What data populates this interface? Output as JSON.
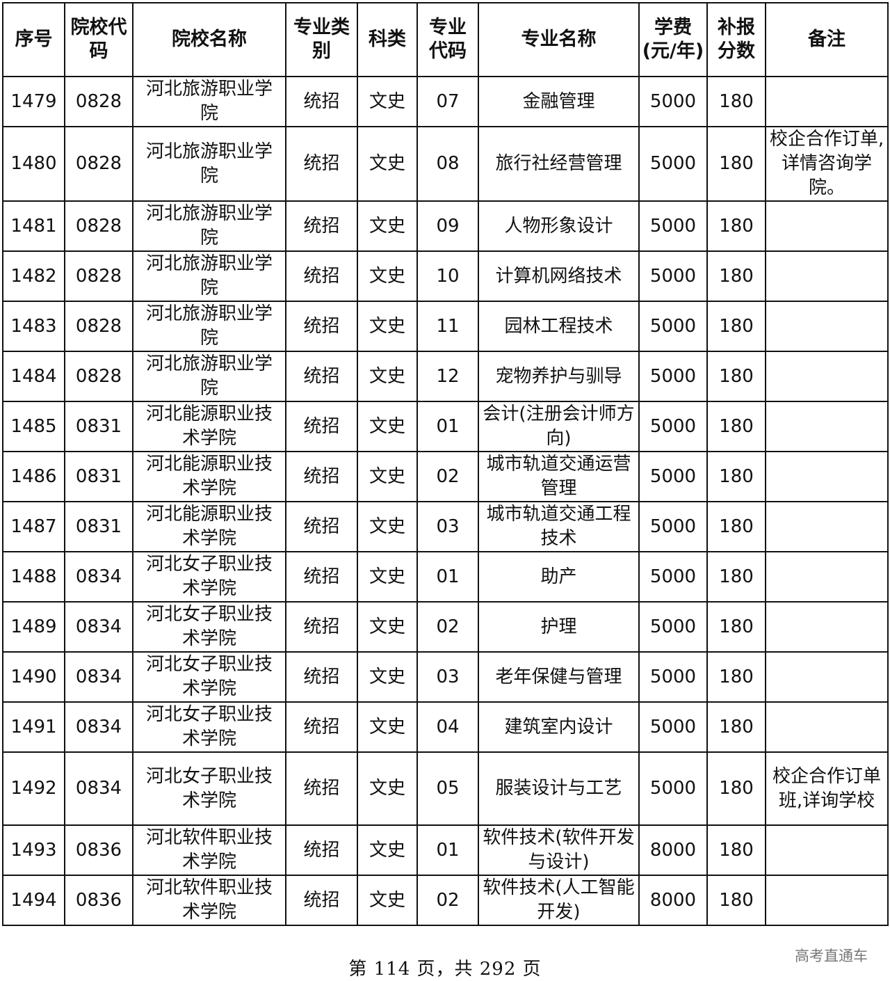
{
  "table": {
    "headers": [
      "序号",
      "院校代码",
      "院校名称",
      "专业类别",
      "科类",
      "专业代码",
      "专业名称",
      "学费(元/年)",
      "补报分数",
      "备注"
    ],
    "rows": [
      [
        "1479",
        "0828",
        "河北旅游职业学院",
        "统招",
        "文史",
        "07",
        "金融管理",
        "5000",
        "180",
        ""
      ],
      [
        "1480",
        "0828",
        "河北旅游职业学院",
        "统招",
        "文史",
        "08",
        "旅行社经营管理",
        "5000",
        "180",
        "校企合作订单,详情咨询学院。"
      ],
      [
        "1481",
        "0828",
        "河北旅游职业学院",
        "统招",
        "文史",
        "09",
        "人物形象设计",
        "5000",
        "180",
        ""
      ],
      [
        "1482",
        "0828",
        "河北旅游职业学院",
        "统招",
        "文史",
        "10",
        "计算机网络技术",
        "5000",
        "180",
        ""
      ],
      [
        "1483",
        "0828",
        "河北旅游职业学院",
        "统招",
        "文史",
        "11",
        "园林工程技术",
        "5000",
        "180",
        ""
      ],
      [
        "1484",
        "0828",
        "河北旅游职业学院",
        "统招",
        "文史",
        "12",
        "宠物养护与驯导",
        "5000",
        "180",
        ""
      ],
      [
        "1485",
        "0831",
        "河北能源职业技术学院",
        "统招",
        "文史",
        "01",
        "会计(注册会计师方向)",
        "5000",
        "180",
        ""
      ],
      [
        "1486",
        "0831",
        "河北能源职业技术学院",
        "统招",
        "文史",
        "02",
        "城市轨道交通运营管理",
        "5000",
        "180",
        ""
      ],
      [
        "1487",
        "0831",
        "河北能源职业技术学院",
        "统招",
        "文史",
        "03",
        "城市轨道交通工程技术",
        "5000",
        "180",
        ""
      ],
      [
        "1488",
        "0834",
        "河北女子职业技术学院",
        "统招",
        "文史",
        "01",
        "助产",
        "5000",
        "180",
        ""
      ],
      [
        "1489",
        "0834",
        "河北女子职业技术学院",
        "统招",
        "文史",
        "02",
        "护理",
        "5000",
        "180",
        ""
      ],
      [
        "1490",
        "0834",
        "河北女子职业技术学院",
        "统招",
        "文史",
        "03",
        "老年保健与管理",
        "5000",
        "180",
        ""
      ],
      [
        "1491",
        "0834",
        "河北女子职业技术学院",
        "统招",
        "文史",
        "04",
        "建筑室内设计",
        "5000",
        "180",
        ""
      ],
      [
        "1492",
        "0834",
        "河北女子职业技术学院",
        "统招",
        "文史",
        "05",
        "服装设计与工艺",
        "5000",
        "180",
        "校企合作订单班,详询学校"
      ],
      [
        "1493",
        "0836",
        "河北软件职业技术学院",
        "统招",
        "文史",
        "01",
        "软件技术(软件开发与设计)",
        "8000",
        "180",
        ""
      ],
      [
        "1494",
        "0836",
        "河北软件职业技术学院",
        "统招",
        "文史",
        "02",
        "软件技术(人工智能开发)",
        "8000",
        "180",
        ""
      ]
    ]
  },
  "footer": {
    "page_text": "第 114 页，共 292 页"
  },
  "watermark": "高考直通车"
}
